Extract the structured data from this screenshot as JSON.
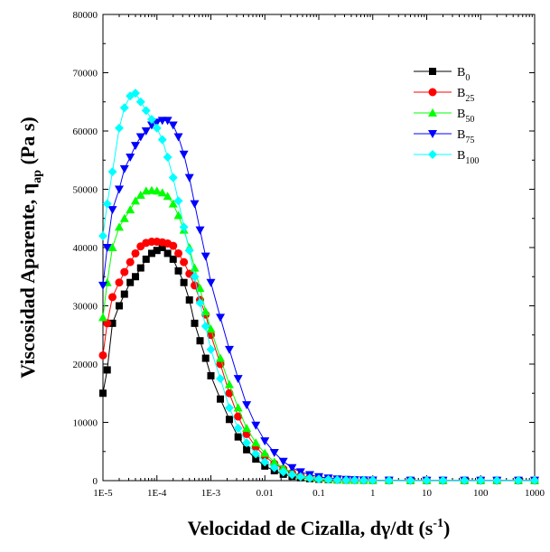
{
  "chart_data": {
    "type": "scatter",
    "xscale": "log",
    "xlim": [
      1e-05,
      1000
    ],
    "ylim": [
      0,
      80000
    ],
    "x_ticks": [
      "1E-5",
      "1E-4",
      "1E-3",
      "0.01",
      "0.1",
      "1",
      "10",
      "100",
      "1000"
    ],
    "y_ticks": [
      "0",
      "10000",
      "20000",
      "30000",
      "40000",
      "50000",
      "60000",
      "70000",
      "80000"
    ],
    "xlabel": {
      "main": "Velocidad de Cizalla,  dγ/dt (s",
      "sup": "-1",
      "end": ")"
    },
    "ylabel": {
      "main": "Viscosidad Aparente,  η",
      "sub": "ap",
      "end": "  (Pa s)"
    },
    "legend_position": "top-right",
    "series": [
      {
        "name": "B",
        "sub": "0",
        "color": "#000000",
        "marker": "square",
        "x": [
          1e-05,
          1.2e-05,
          1.5e-05,
          2e-05,
          2.5e-05,
          3.2e-05,
          4e-05,
          5e-05,
          6.3e-05,
          8e-05,
          0.0001,
          0.000126,
          0.000158,
          0.0002,
          0.00025,
          0.000316,
          0.0004,
          0.0005,
          0.00063,
          0.0008,
          0.001,
          0.0015,
          0.0022,
          0.0032,
          0.0046,
          0.0068,
          0.01,
          0.015,
          0.022,
          0.032,
          0.046,
          0.068,
          0.1,
          0.15,
          0.22,
          0.32,
          0.46,
          0.68,
          1,
          2,
          5,
          10,
          20,
          50,
          100,
          200,
          500,
          1000
        ],
        "y": [
          15000,
          19000,
          27000,
          30000,
          32000,
          34000,
          35000,
          36500,
          38000,
          39000,
          39500,
          40000,
          39000,
          38000,
          36000,
          34000,
          31000,
          27000,
          24000,
          21000,
          18000,
          14000,
          10500,
          7500,
          5300,
          3700,
          2500,
          1700,
          1100,
          750,
          500,
          350,
          250,
          180,
          130,
          100,
          80,
          60,
          50,
          40,
          30,
          30,
          30,
          30,
          30,
          30,
          30,
          30
        ]
      },
      {
        "name": "B",
        "sub": "25",
        "color": "#ff0000",
        "marker": "circle",
        "x": [
          1e-05,
          1.2e-05,
          1.5e-05,
          2e-05,
          2.5e-05,
          3.2e-05,
          4e-05,
          5e-05,
          6.3e-05,
          8e-05,
          0.0001,
          0.000126,
          0.000158,
          0.0002,
          0.00025,
          0.000316,
          0.0004,
          0.0005,
          0.00063,
          0.0008,
          0.001,
          0.0015,
          0.0022,
          0.0032,
          0.0046,
          0.0068,
          0.01,
          0.015,
          0.022,
          0.032,
          0.046,
          0.068,
          0.1,
          0.15,
          0.22,
          0.32,
          0.46,
          0.68,
          1,
          2,
          5,
          10,
          20,
          50,
          100,
          200,
          500,
          1000
        ],
        "y": [
          21500,
          27000,
          31500,
          34000,
          35800,
          37500,
          39000,
          40200,
          40800,
          41000,
          41000,
          40900,
          40700,
          40300,
          39000,
          37500,
          35500,
          33500,
          31000,
          28500,
          25000,
          20000,
          15000,
          11000,
          8000,
          5800,
          4200,
          2900,
          2000,
          1300,
          850,
          550,
          370,
          250,
          170,
          120,
          90,
          70,
          60,
          45,
          40,
          35,
          35,
          35,
          35,
          35,
          35,
          35
        ]
      },
      {
        "name": "B",
        "sub": "50",
        "color": "#00ff00",
        "marker": "triangle-up",
        "x": [
          1e-05,
          1.2e-05,
          1.5e-05,
          2e-05,
          2.5e-05,
          3.2e-05,
          4e-05,
          5e-05,
          6.3e-05,
          8e-05,
          0.0001,
          0.000126,
          0.000158,
          0.0002,
          0.00025,
          0.000316,
          0.0004,
          0.0005,
          0.00063,
          0.0008,
          0.001,
          0.0015,
          0.0022,
          0.0032,
          0.0046,
          0.0068,
          0.01,
          0.015,
          0.022,
          0.032,
          0.046,
          0.068,
          0.1,
          0.15,
          0.22,
          0.32,
          0.46,
          0.68,
          1,
          2,
          5,
          10,
          20,
          50,
          100,
          200,
          500,
          1000
        ],
        "y": [
          28000,
          34000,
          40000,
          43500,
          45000,
          46500,
          48000,
          49000,
          49700,
          49800,
          49700,
          49400,
          48800,
          47500,
          45500,
          43000,
          40000,
          36500,
          33000,
          29000,
          26000,
          21000,
          16500,
          12500,
          9000,
          6500,
          4700,
          3200,
          2200,
          1400,
          900,
          600,
          400,
          270,
          180,
          130,
          95,
          75,
          60,
          45,
          40,
          35,
          35,
          35,
          35,
          35,
          35,
          35
        ]
      },
      {
        "name": "B",
        "sub": "75",
        "color": "#0000ff",
        "marker": "triangle-down",
        "x": [
          1e-05,
          1.2e-05,
          1.5e-05,
          2e-05,
          2.5e-05,
          3.2e-05,
          4e-05,
          5e-05,
          6.3e-05,
          8e-05,
          0.0001,
          0.000126,
          0.000158,
          0.0002,
          0.00025,
          0.000316,
          0.0004,
          0.0005,
          0.00063,
          0.0008,
          0.001,
          0.0015,
          0.0022,
          0.0032,
          0.0046,
          0.0068,
          0.01,
          0.015,
          0.022,
          0.032,
          0.046,
          0.068,
          0.1,
          0.15,
          0.22,
          0.32,
          0.46,
          0.68,
          1,
          2,
          5,
          10,
          20,
          50,
          100,
          200,
          500,
          1000
        ],
        "y": [
          33500,
          40000,
          46500,
          50000,
          53500,
          55500,
          57500,
          59000,
          60000,
          61000,
          61500,
          61800,
          61800,
          61000,
          59000,
          56000,
          52000,
          47500,
          43000,
          38500,
          34000,
          28000,
          22500,
          17500,
          13000,
          9500,
          6800,
          4800,
          3300,
          2200,
          1500,
          1000,
          650,
          430,
          280,
          190,
          130,
          95,
          75,
          55,
          45,
          40,
          40,
          40,
          40,
          40,
          40,
          40
        ]
      },
      {
        "name": "B",
        "sub": "100",
        "color": "#00ffff",
        "marker": "diamond",
        "x": [
          1e-05,
          1.2e-05,
          1.5e-05,
          2e-05,
          2.5e-05,
          3.2e-05,
          4e-05,
          5e-05,
          6.3e-05,
          8e-05,
          0.0001,
          0.000126,
          0.000158,
          0.0002,
          0.00025,
          0.000316,
          0.0004,
          0.0005,
          0.00063,
          0.0008,
          0.001,
          0.0015,
          0.0022,
          0.0032,
          0.0046,
          0.0068,
          0.01,
          0.015,
          0.022,
          0.032,
          0.046,
          0.068,
          0.1,
          0.15,
          0.22,
          0.32,
          0.46,
          0.68,
          1,
          2,
          5,
          10,
          20,
          50,
          100,
          200,
          500,
          1000
        ],
        "y": [
          42000,
          47500,
          53000,
          60500,
          64000,
          66000,
          66500,
          65000,
          63500,
          62000,
          60500,
          58500,
          55500,
          52000,
          48000,
          43500,
          39500,
          35000,
          30500,
          26500,
          22500,
          17500,
          12500,
          9000,
          6500,
          4600,
          3200,
          2200,
          1500,
          1000,
          650,
          430,
          280,
          190,
          130,
          95,
          75,
          60,
          50,
          40,
          35,
          30,
          30,
          30,
          30,
          30,
          30,
          30
        ]
      }
    ]
  }
}
